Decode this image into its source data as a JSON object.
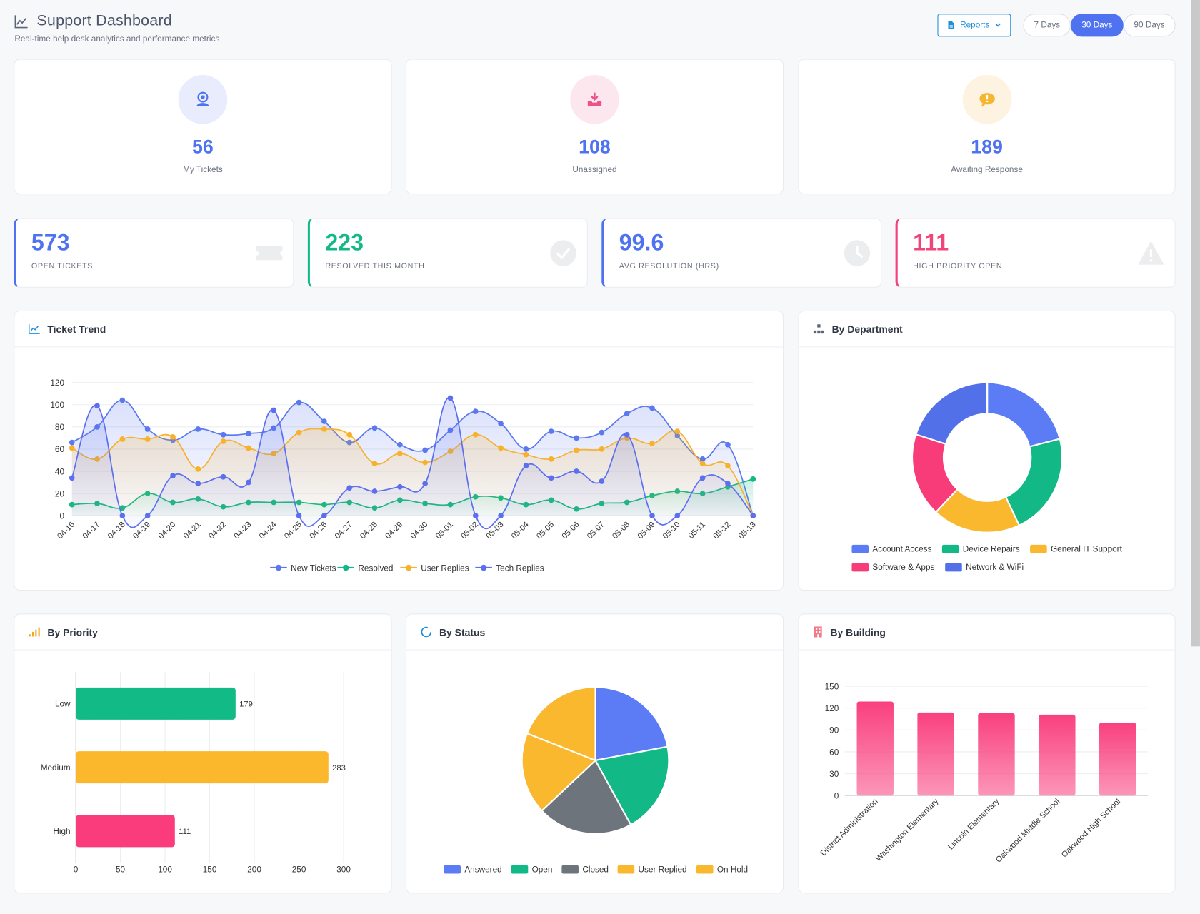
{
  "header": {
    "title": "Support Dashboard",
    "subtitle": "Real-time help desk analytics and performance metrics",
    "reports_label": "Reports",
    "ranges": [
      {
        "label": "7 Days",
        "active": false
      },
      {
        "label": "30 Days",
        "active": true
      },
      {
        "label": "90 Days",
        "active": false
      }
    ]
  },
  "stats": [
    {
      "value": "56",
      "label": "My Tickets",
      "icon": "headset-icon",
      "bg": "#e8ecfd",
      "fg": "#4f73f0"
    },
    {
      "value": "108",
      "label": "Unassigned",
      "icon": "inbox-download-icon",
      "bg": "#fde7ee",
      "fg": "#f0508a"
    },
    {
      "value": "189",
      "label": "Awaiting Response",
      "icon": "chat-alert-icon",
      "bg": "#fdf3e0",
      "fg": "#f5b731"
    }
  ],
  "metrics": [
    {
      "value": "573",
      "label": "OPEN TICKETS",
      "color": "#4f73f0",
      "icon": "ticket-icon"
    },
    {
      "value": "223",
      "label": "RESOLVED THIS MONTH",
      "color": "#12b886",
      "icon": "check-circle-icon"
    },
    {
      "value": "99.6",
      "label": "AVG RESOLUTION (HRS)",
      "color": "#4f73f0",
      "icon": "clock-icon"
    },
    {
      "value": "111",
      "label": "HIGH PRIORITY OPEN",
      "color": "#f0447a",
      "icon": "warning-icon"
    }
  ],
  "panels": {
    "trend": "Ticket Trend",
    "department": "By Department",
    "priority": "By Priority",
    "status": "By Status",
    "building": "By Building"
  },
  "chart_data": [
    {
      "type": "line",
      "title": "Ticket Trend",
      "x": [
        "04-16",
        "04-17",
        "04-18",
        "04-19",
        "04-20",
        "04-21",
        "04-22",
        "04-23",
        "04-24",
        "04-25",
        "04-26",
        "04-27",
        "04-28",
        "04-29",
        "04-30",
        "05-01",
        "05-02",
        "05-03",
        "05-04",
        "05-05",
        "05-06",
        "05-07",
        "05-08",
        "05-09",
        "05-10",
        "05-11",
        "05-12",
        "05-13"
      ],
      "ylim": [
        0,
        120
      ],
      "yticks": [
        0,
        20,
        40,
        60,
        80,
        100,
        120
      ],
      "series": [
        {
          "name": "New Tickets",
          "color": "#5b78ee",
          "values": [
            66,
            80,
            104,
            78,
            68,
            78,
            73,
            74,
            79,
            102,
            85,
            66,
            79,
            64,
            59,
            77,
            94,
            83,
            60,
            76,
            70,
            75,
            92,
            97,
            72,
            51,
            64,
            0
          ]
        },
        {
          "name": "Resolved",
          "color": "#12b886",
          "values": [
            10,
            11,
            7,
            20,
            12,
            15,
            8,
            12,
            12,
            12,
            10,
            12,
            7,
            14,
            11,
            10,
            17,
            16,
            10,
            14,
            6,
            11,
            12,
            18,
            22,
            20,
            26,
            33
          ]
        },
        {
          "name": "User Replies",
          "color": "#f7b12b",
          "values": [
            61,
            51,
            69,
            69,
            71,
            42,
            67,
            61,
            56,
            75,
            78,
            73,
            47,
            56,
            48,
            58,
            73,
            61,
            55,
            51,
            59,
            60,
            70,
            65,
            76,
            47,
            45,
            0
          ]
        },
        {
          "name": "Tech Replies",
          "color": "#5b6ff0",
          "values": [
            34,
            99,
            0,
            0,
            36,
            29,
            35,
            30,
            95,
            0,
            0,
            25,
            22,
            26,
            29,
            106,
            0,
            0,
            45,
            34,
            40,
            31,
            73,
            0,
            0,
            34,
            29,
            0
          ]
        }
      ],
      "legend": "bottom"
    },
    {
      "type": "pie",
      "title": "By Department",
      "categories": [
        "Account Access",
        "Device Repairs",
        "General IT Support",
        "Software & Apps",
        "Network & WiFi"
      ],
      "values": [
        21,
        22,
        19,
        18,
        20
      ],
      "colors": [
        "#5b7cf5",
        "#12b886",
        "#f9b82d",
        "#f83c7a",
        "#5270e8"
      ],
      "legend": "bottom"
    },
    {
      "type": "bar",
      "title": "By Priority",
      "orientation": "horizontal",
      "categories": [
        "Low",
        "Medium",
        "High"
      ],
      "values": [
        179,
        283,
        111
      ],
      "colors": [
        "#12bb85",
        "#fbb82c",
        "#fb3c7c"
      ],
      "xlim": [
        0,
        300
      ],
      "xticks": [
        0,
        50,
        100,
        150,
        200,
        250,
        300
      ]
    },
    {
      "type": "pie",
      "title": "By Status",
      "categories": [
        "Answered",
        "Open",
        "Closed",
        "User Replied",
        "On Hold"
      ],
      "values": [
        22,
        20,
        21,
        18,
        19
      ],
      "colors": [
        "#5b7cf5",
        "#12b886",
        "#6d747c",
        "#f9b82d",
        "#f9b82d"
      ],
      "legend": "bottom"
    },
    {
      "type": "bar",
      "title": "By Building",
      "categories": [
        "District Administration",
        "Washington Elementary",
        "Lincoln Elementary",
        "Oakwood Middle School",
        "Oakwood High School"
      ],
      "values": [
        129,
        114,
        113,
        111,
        100
      ],
      "color": "#f9407f",
      "ylim": [
        0,
        150
      ],
      "yticks": [
        0,
        30,
        60,
        90,
        120,
        150
      ]
    }
  ]
}
